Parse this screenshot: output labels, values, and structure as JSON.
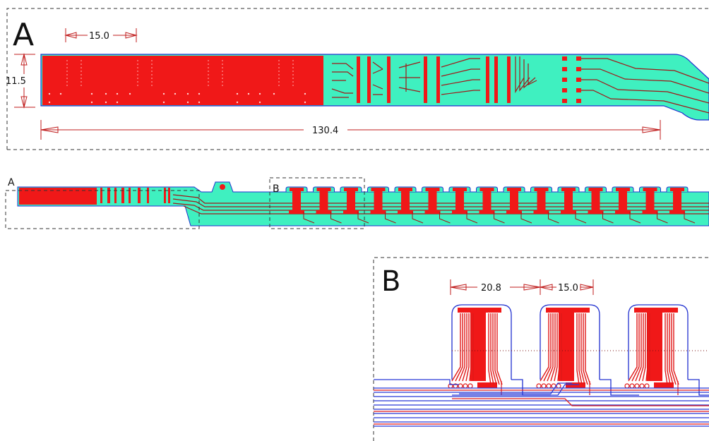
{
  "panels": {
    "a_label": "A",
    "b_label": "B",
    "overview_a_label": "A",
    "overview_b_label": "B"
  },
  "dimensions": {
    "a_top_width": "15.0",
    "a_height": "11.5",
    "a_total_length": "130.4",
    "b_pitch": "20.8",
    "b_width": "15.0"
  },
  "colors": {
    "substrate": "#3ff0c0",
    "copper": "#f01818",
    "outline": "#2030d0",
    "dimension_line": "#c01e1e"
  }
}
